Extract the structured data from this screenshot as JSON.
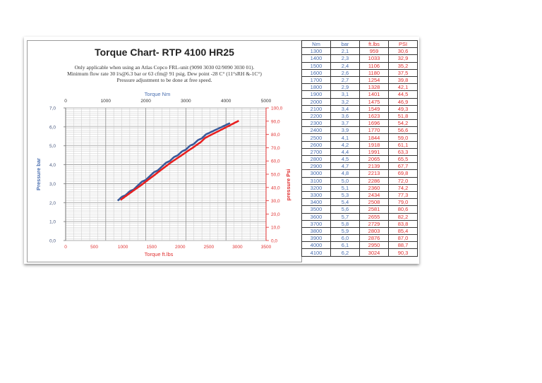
{
  "header": {
    "title": "Torque Chart- RTP 4100 HR25",
    "notes": [
      "Only applicable when using an Atlas Copco FRL-unit (9090 3030 02/9090 3030 01).",
      "Minimum flow rate  30 l/s@6.3 bar or 63 cfm@ 91 psig. Dew point -28 C°  (11°sRH &-1C°)",
      "Pressure adjustment to be done at free speed."
    ]
  },
  "colors": {
    "nm_series": "#3a5a9a",
    "ftlbs_series": "#e82020",
    "left_axis": "#4a6fb0",
    "right_axis": "#e03030",
    "grid": "#c8c8c8",
    "grid_major": "#909090"
  },
  "chart_data": {
    "type": "line",
    "title": "Torque Chart- RTP 4100 HR25",
    "x_top_label": "Torque Nm",
    "x_top_ticks": [
      "0",
      "1000",
      "2000",
      "3000",
      "4000",
      "5000"
    ],
    "x_top_range": [
      0,
      5000
    ],
    "x_bottom_label": "Torque  ft.lbs",
    "x_bottom_ticks": [
      "0",
      "500",
      "1000",
      "1500",
      "2000",
      "2500",
      "3000",
      "3500"
    ],
    "x_bottom_range": [
      0,
      3500
    ],
    "y_left_label": "Pressure bar",
    "y_left_ticks": [
      "0,0",
      "1,0",
      "2,0",
      "3,0",
      "4,0",
      "5,0",
      "6,0",
      "7,0"
    ],
    "y_left_range": [
      0,
      7
    ],
    "y_right_label": "pressure Psi",
    "y_right_ticks": [
      "0,0",
      "10,0",
      "20,0",
      "30,0",
      "40,0",
      "50,0",
      "60,0",
      "70,0",
      "80,0",
      "90,0",
      "100,0"
    ],
    "y_right_range": [
      0,
      100
    ],
    "grid": true,
    "series": [
      {
        "name": "Nm vs bar",
        "x_axis": "top",
        "y_axis": "left",
        "color": "#3a5a9a",
        "x": [
          1300,
          1400,
          1500,
          1600,
          1700,
          1800,
          1900,
          2000,
          2100,
          2200,
          2300,
          2400,
          2500,
          2600,
          2700,
          2800,
          2900,
          3000,
          3100,
          3200,
          3300,
          3400,
          3500,
          3600,
          3700,
          3800,
          3900,
          4000,
          4100
        ],
        "y": [
          2.1,
          2.3,
          2.4,
          2.6,
          2.7,
          2.9,
          3.1,
          3.2,
          3.4,
          3.6,
          3.7,
          3.9,
          4.1,
          4.2,
          4.4,
          4.5,
          4.7,
          4.8,
          5.0,
          5.1,
          5.3,
          5.4,
          5.6,
          5.7,
          5.8,
          5.9,
          6.0,
          6.1,
          6.2
        ]
      },
      {
        "name": "ft.lbs vs PSI",
        "x_axis": "bottom",
        "y_axis": "right",
        "color": "#e82020",
        "x": [
          959,
          1033,
          1106,
          1180,
          1254,
          1328,
          1401,
          1475,
          1549,
          1623,
          1696,
          1770,
          1844,
          1918,
          1991,
          2065,
          2139,
          2213,
          2286,
          2360,
          2434,
          2508,
          2581,
          2655,
          2729,
          2803,
          2876,
          2950,
          3024
        ],
        "y": [
          30.6,
          32.9,
          35.2,
          37.5,
          39.8,
          42.1,
          44.5,
          46.9,
          49.3,
          51.8,
          54.2,
          56.6,
          59.0,
          61.1,
          63.3,
          65.5,
          67.7,
          69.8,
          72.0,
          74.2,
          77.3,
          79.0,
          80.6,
          82.2,
          83.8,
          85.4,
          87.0,
          88.7,
          90.3
        ]
      }
    ]
  },
  "table": {
    "headers": [
      "Nm",
      "bar",
      "ft.lbs",
      "PSI"
    ],
    "rows": [
      [
        "1300",
        "2,1",
        "959",
        "30,6"
      ],
      [
        "1400",
        "2,3",
        "1033",
        "32,9"
      ],
      [
        "1500",
        "2,4",
        "1106",
        "35,2"
      ],
      [
        "1600",
        "2,6",
        "1180",
        "37,5"
      ],
      [
        "1700",
        "2,7",
        "1254",
        "39,8"
      ],
      [
        "1800",
        "2,9",
        "1328",
        "42,1"
      ],
      [
        "1900",
        "3,1",
        "1401",
        "44,5"
      ],
      [
        "2000",
        "3,2",
        "1475",
        "46,9"
      ],
      [
        "2100",
        "3,4",
        "1549",
        "49,3"
      ],
      [
        "2200",
        "3,6",
        "1623",
        "51,8"
      ],
      [
        "2300",
        "3,7",
        "1696",
        "54,2"
      ],
      [
        "2400",
        "3,9",
        "1770",
        "56,6"
      ],
      [
        "2500",
        "4,1",
        "1844",
        "59,0"
      ],
      [
        "2600",
        "4,2",
        "1918",
        "61,1"
      ],
      [
        "2700",
        "4,4",
        "1991",
        "63,3"
      ],
      [
        "2800",
        "4,5",
        "2065",
        "65,5"
      ],
      [
        "2900",
        "4,7",
        "2139",
        "67,7"
      ],
      [
        "3000",
        "4,8",
        "2213",
        "69,8"
      ],
      [
        "3100",
        "5,0",
        "2286",
        "72,0"
      ],
      [
        "3200",
        "5,1",
        "2360",
        "74,2"
      ],
      [
        "3300",
        "5,3",
        "2434",
        "77,3"
      ],
      [
        "3400",
        "5,4",
        "2508",
        "79,0"
      ],
      [
        "3500",
        "5,6",
        "2581",
        "80,6"
      ],
      [
        "3600",
        "5,7",
        "2655",
        "82,2"
      ],
      [
        "3700",
        "5,8",
        "2729",
        "83,8"
      ],
      [
        "3800",
        "5,9",
        "2803",
        "85,4"
      ],
      [
        "3900",
        "6,0",
        "2876",
        "87,0"
      ],
      [
        "4000",
        "6,1",
        "2950",
        "88,7"
      ],
      [
        "4100",
        "6,2",
        "3024",
        "90,3"
      ]
    ]
  }
}
